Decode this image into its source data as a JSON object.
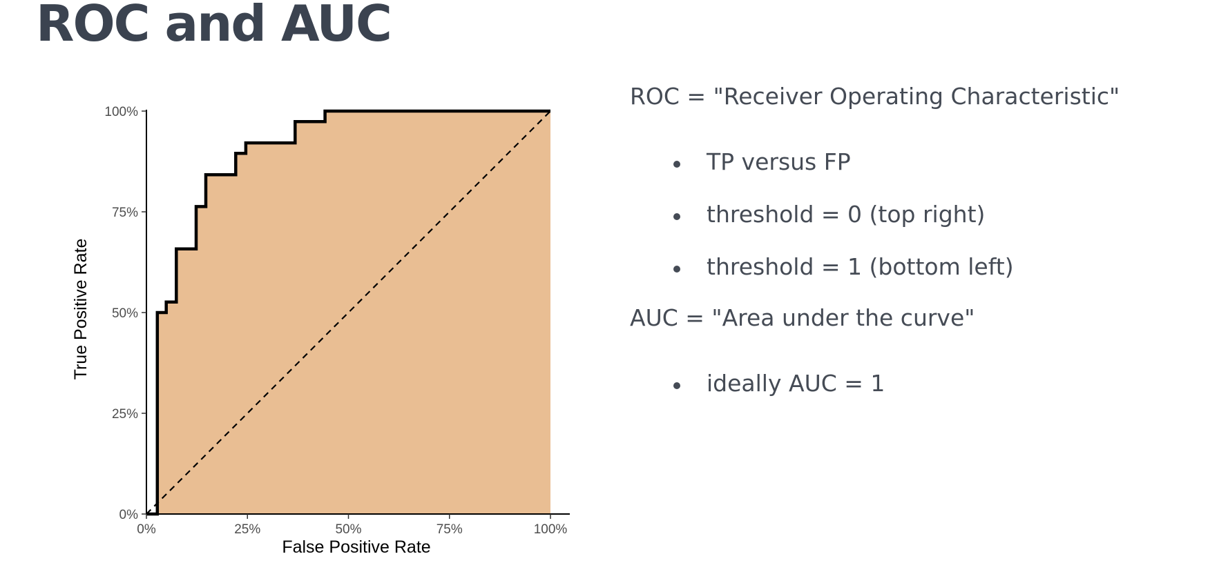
{
  "slide": {
    "title": "ROC and AUC"
  },
  "chart_data": {
    "type": "area",
    "title": "",
    "xlabel": "False Positive Rate",
    "ylabel": "True Positive Rate",
    "xlim": [
      0,
      1
    ],
    "ylim": [
      0,
      1
    ],
    "x_ticks": [
      0,
      0.25,
      0.5,
      0.75,
      1
    ],
    "x_tick_labels": [
      "0%",
      "25%",
      "50%",
      "75%",
      "100%"
    ],
    "y_ticks": [
      0,
      0.25,
      0.5,
      0.75,
      1
    ],
    "y_tick_labels": [
      "0%",
      "25%",
      "50%",
      "75%",
      "100%"
    ],
    "grid": false,
    "fill_color": "#e9be93",
    "curve_color": "#000000",
    "series": [
      {
        "style": "step",
        "points": [
          [
            0.0,
            0.0
          ],
          [
            0.027,
            0.0
          ],
          [
            0.027,
            0.5
          ],
          [
            0.049,
            0.5
          ],
          [
            0.049,
            0.526
          ],
          [
            0.074,
            0.526
          ],
          [
            0.074,
            0.658
          ],
          [
            0.123,
            0.658
          ],
          [
            0.123,
            0.763
          ],
          [
            0.147,
            0.763
          ],
          [
            0.147,
            0.842
          ],
          [
            0.221,
            0.842
          ],
          [
            0.221,
            0.895
          ],
          [
            0.246,
            0.895
          ],
          [
            0.246,
            0.921
          ],
          [
            0.368,
            0.921
          ],
          [
            0.368,
            0.974
          ],
          [
            0.442,
            0.974
          ],
          [
            0.442,
            1.0
          ],
          [
            1.0,
            1.0
          ]
        ]
      },
      {
        "style": "dashed",
        "points": [
          [
            0,
            0
          ],
          [
            1,
            1
          ]
        ]
      }
    ]
  },
  "bullets": {
    "roc_heading": "ROC = \"Receiver Operating Characteristic\"",
    "roc_items": [
      "TP versus FP",
      "threshold = 0 (top right)",
      "threshold = 1 (bottom left)"
    ],
    "auc_heading": "AUC = \"Area under the curve\"",
    "auc_items": [
      "ideally AUC = 1"
    ]
  }
}
